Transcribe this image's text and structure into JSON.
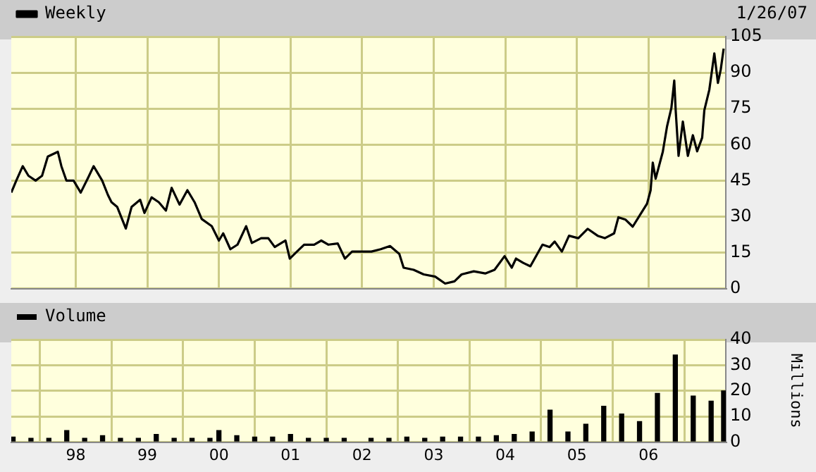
{
  "chart_data": [
    {
      "type": "line",
      "annotations": [
        "1/26/07"
      ],
      "legend": "top left",
      "grid": true,
      "tick_labels": "y",
      "xlim": [
        1997.1,
        2007.08
      ],
      "xticks": [
        {
          "value": 1998,
          "label": null
        },
        {
          "value": 1999,
          "label": null
        },
        {
          "value": 2000,
          "label": null
        },
        {
          "value": 2001,
          "label": null
        },
        {
          "value": 2002,
          "label": null
        },
        {
          "value": 2003,
          "label": null
        },
        {
          "value": 2004,
          "label": null
        },
        {
          "value": 2005,
          "label": null
        },
        {
          "value": 2006,
          "label": null
        }
      ],
      "ylim": [
        0,
        105
      ],
      "yticks": [
        0,
        15,
        30,
        45,
        60,
        75,
        90,
        105
      ],
      "series": [
        {
          "name": "Weekly",
          "color": "#000000",
          "x": [
            1997.1,
            1997.17,
            1997.26,
            1997.34,
            1997.44,
            1997.53,
            1997.61,
            1997.75,
            1997.8,
            1997.87,
            1997.97,
            1998.07,
            1998.17,
            1998.25,
            1998.37,
            1998.45,
            1998.5,
            1998.58,
            1998.7,
            1998.78,
            1998.9,
            1998.96,
            1999.06,
            1999.16,
            1999.26,
            1999.34,
            1999.45,
            1999.56,
            1999.66,
            1999.76,
            1999.9,
            2000.0,
            2000.06,
            2000.16,
            2000.26,
            2000.38,
            2000.46,
            2000.59,
            2000.69,
            2000.78,
            2000.93,
            2000.99,
            2001.09,
            2001.19,
            2001.33,
            2001.43,
            2001.53,
            2001.66,
            2001.76,
            2001.86,
            2001.99,
            2002.13,
            2002.26,
            2002.39,
            2002.52,
            2002.58,
            2002.72,
            2002.86,
            2003.02,
            2003.16,
            2003.29,
            2003.39,
            2003.56,
            2003.72,
            2003.85,
            2003.99,
            2004.09,
            2004.15,
            2004.25,
            2004.35,
            2004.52,
            2004.62,
            2004.69,
            2004.79,
            2004.89,
            2005.02,
            2005.15,
            2005.29,
            2005.39,
            2005.52,
            2005.58,
            2005.68,
            2005.78,
            2005.88,
            2005.98,
            2006.03,
            2006.06,
            2006.1,
            2006.2,
            2006.26,
            2006.32,
            2006.36,
            2006.38,
            2006.42,
            2006.48,
            2006.55,
            2006.62,
            2006.68,
            2006.75,
            2006.78,
            2006.85,
            2006.92,
            2006.97,
            2007.01,
            2007.05
          ],
          "values": [
            40,
            45,
            51,
            47,
            45,
            47,
            55,
            57,
            51,
            45,
            45,
            40,
            46,
            51,
            45,
            39,
            36,
            34,
            25,
            34,
            37,
            31.5,
            38,
            36,
            32.5,
            42,
            35,
            41,
            36,
            29,
            26,
            20,
            23,
            16.4,
            18.3,
            26,
            19,
            21,
            21,
            17.3,
            20,
            12.5,
            15.4,
            18.3,
            18.3,
            20,
            18.3,
            18.8,
            12.5,
            15.4,
            15.4,
            15.4,
            16.4,
            17.7,
            14.4,
            8.7,
            7.8,
            5.9,
            5,
            2.1,
            3,
            5.9,
            7.2,
            6.3,
            7.8,
            13.5,
            8.7,
            12.5,
            10.7,
            9.3,
            18.3,
            17.3,
            19.6,
            15.4,
            22,
            21,
            24.9,
            22,
            21,
            23,
            29.7,
            28.7,
            25.8,
            30.6,
            35.4,
            41,
            52.5,
            45.8,
            57,
            67.7,
            75.3,
            86.7,
            74.3,
            55.3,
            69.6,
            55.3,
            63.9,
            57.2,
            62.9,
            74.3,
            82.9,
            98,
            85.7,
            91.4,
            100
          ]
        }
      ]
    },
    {
      "type": "bar",
      "legend": "top left",
      "grid": true,
      "ylabel": "Millions",
      "xlim": [
        1997.1,
        2007.08
      ],
      "xticks": [
        {
          "value": 1998,
          "label": "98"
        },
        {
          "value": 1999,
          "label": "99"
        },
        {
          "value": 2000,
          "label": "00"
        },
        {
          "value": 2001,
          "label": "01"
        },
        {
          "value": 2002,
          "label": "02"
        },
        {
          "value": 2003,
          "label": "03"
        },
        {
          "value": 2004,
          "label": "04"
        },
        {
          "value": 2005,
          "label": "05"
        },
        {
          "value": 2006,
          "label": "06"
        }
      ],
      "ylim": [
        0,
        40
      ],
      "yticks": [
        0,
        10,
        20,
        30,
        40
      ],
      "series": [
        {
          "name": "Volume",
          "color": "#000000",
          "x": [
            1997.125,
            1997.375,
            1997.625,
            1997.875,
            1998.125,
            1998.375,
            1998.625,
            1998.875,
            1999.125,
            1999.375,
            1999.625,
            1999.875,
            2000.0,
            2000.25,
            2000.5,
            2000.75,
            2001.0,
            2001.25,
            2001.5,
            2001.75,
            2002.125,
            2002.375,
            2002.625,
            2002.875,
            2003.125,
            2003.375,
            2003.625,
            2003.875,
            2004.125,
            2004.375,
            2004.625,
            2004.875,
            2005.125,
            2005.375,
            2005.625,
            2005.875,
            2006.125,
            2006.375,
            2006.625,
            2006.875,
            2007.05
          ],
          "values": [
            2,
            1.5,
            1.5,
            4.5,
            1.5,
            2.5,
            1.5,
            1.5,
            3,
            1.5,
            1.5,
            1.5,
            4.5,
            2.5,
            2,
            2,
            3,
            1.5,
            1.5,
            1.5,
            1.5,
            1.5,
            2,
            1.5,
            2,
            2,
            2,
            2.5,
            3,
            4,
            12.5,
            4,
            7,
            14,
            11,
            8,
            19,
            34,
            18,
            16,
            20
          ]
        }
      ]
    }
  ]
}
